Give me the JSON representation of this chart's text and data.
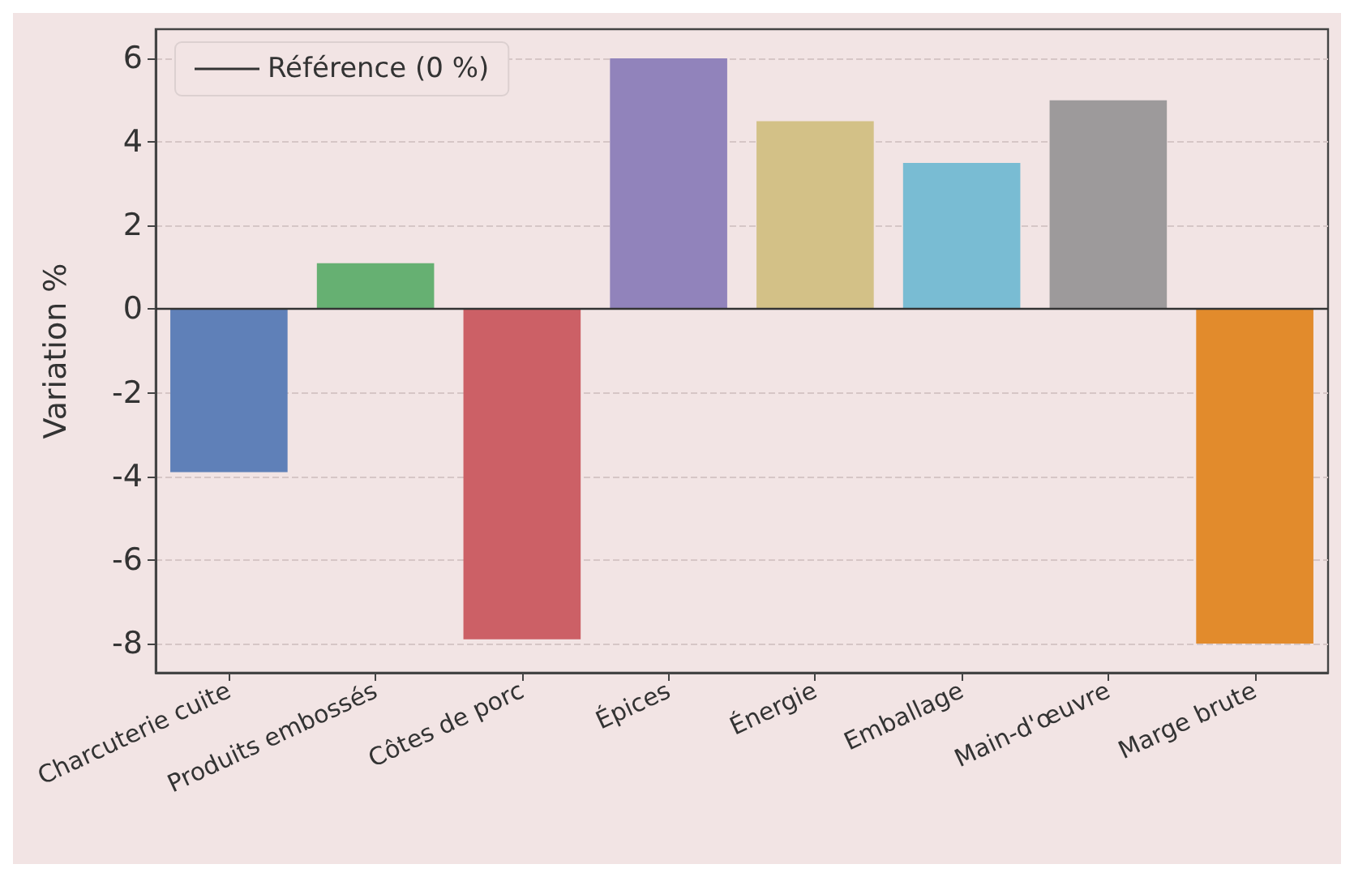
{
  "chart_data": {
    "type": "bar",
    "ylabel": "Variation %",
    "categories": [
      "Charcuterie cuite",
      "Produits embossés",
      "Côtes de porc",
      "Épices",
      "Énergie",
      "Emballage",
      "Main-d'œuvre",
      "Marge brute"
    ],
    "values": [
      -3.9,
      1.1,
      -7.9,
      6.0,
      4.5,
      3.5,
      5.0,
      -8.0
    ],
    "colors": [
      "#5f80b8",
      "#66b072",
      "#cc6066",
      "#9183bb",
      "#d3c187",
      "#79bcd3",
      "#9d9a9b",
      "#e28b2c"
    ],
    "ylim": [
      -8.7,
      6.7
    ],
    "yticks": [
      -8,
      -6,
      -4,
      -2,
      0,
      2,
      4,
      6
    ],
    "grid": "y",
    "legend": "top left",
    "ref_lines": [
      {
        "axis": "y",
        "value": 0,
        "label": "Référence (0 %)",
        "color": "#333333",
        "line_style": "solid"
      }
    ]
  }
}
